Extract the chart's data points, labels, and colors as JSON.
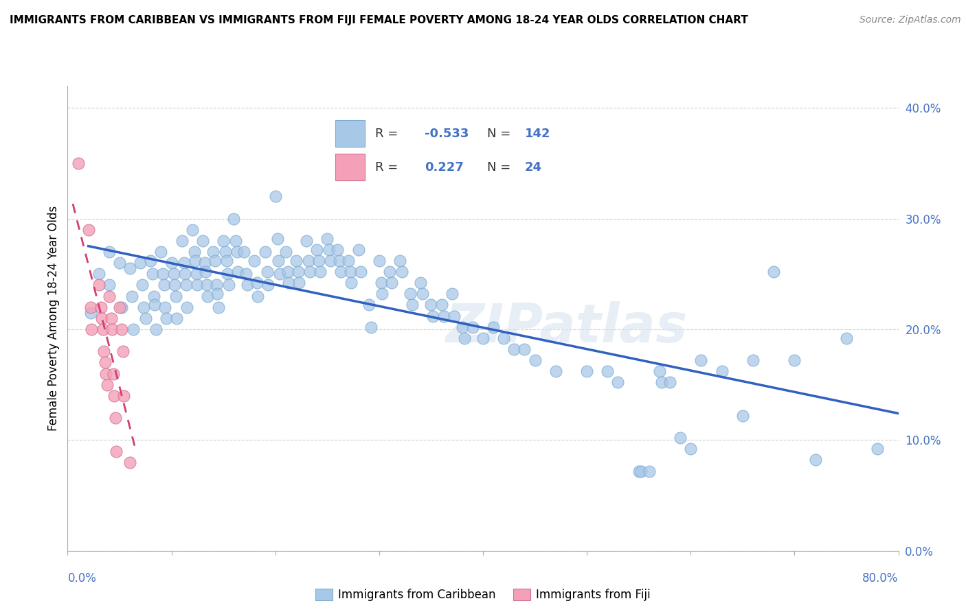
{
  "title": "IMMIGRANTS FROM CARIBBEAN VS IMMIGRANTS FROM FIJI FEMALE POVERTY AMONG 18-24 YEAR OLDS CORRELATION CHART",
  "source": "Source: ZipAtlas.com",
  "ylabel": "Female Poverty Among 18-24 Year Olds",
  "xlim": [
    0.0,
    0.8
  ],
  "ylim": [
    0.0,
    0.42
  ],
  "caribbean_color": "#a8c8e8",
  "fiji_color": "#f4a0b8",
  "caribbean_line_color": "#3060c0",
  "fiji_line_color": "#d04070",
  "legend_R_caribbean": "-0.533",
  "legend_N_caribbean": "142",
  "legend_R_fiji": "0.227",
  "legend_N_fiji": "24",
  "legend_text_color": "#4472c4",
  "watermark": "ZIPatlas",
  "background_color": "#ffffff",
  "grid_color": "#d0d0d0",
  "caribbean_scatter": [
    [
      0.022,
      0.215
    ],
    [
      0.03,
      0.25
    ],
    [
      0.04,
      0.27
    ],
    [
      0.04,
      0.24
    ],
    [
      0.05,
      0.26
    ],
    [
      0.052,
      0.22
    ],
    [
      0.06,
      0.255
    ],
    [
      0.062,
      0.23
    ],
    [
      0.063,
      0.2
    ],
    [
      0.07,
      0.26
    ],
    [
      0.072,
      0.24
    ],
    [
      0.073,
      0.22
    ],
    [
      0.075,
      0.21
    ],
    [
      0.08,
      0.262
    ],
    [
      0.082,
      0.25
    ],
    [
      0.083,
      0.23
    ],
    [
      0.084,
      0.222
    ],
    [
      0.085,
      0.2
    ],
    [
      0.09,
      0.27
    ],
    [
      0.092,
      0.25
    ],
    [
      0.093,
      0.24
    ],
    [
      0.094,
      0.22
    ],
    [
      0.095,
      0.21
    ],
    [
      0.1,
      0.26
    ],
    [
      0.102,
      0.25
    ],
    [
      0.103,
      0.24
    ],
    [
      0.104,
      0.23
    ],
    [
      0.105,
      0.21
    ],
    [
      0.11,
      0.28
    ],
    [
      0.112,
      0.26
    ],
    [
      0.113,
      0.25
    ],
    [
      0.114,
      0.24
    ],
    [
      0.115,
      0.22
    ],
    [
      0.12,
      0.29
    ],
    [
      0.122,
      0.27
    ],
    [
      0.123,
      0.262
    ],
    [
      0.124,
      0.25
    ],
    [
      0.125,
      0.24
    ],
    [
      0.13,
      0.28
    ],
    [
      0.132,
      0.26
    ],
    [
      0.133,
      0.252
    ],
    [
      0.134,
      0.24
    ],
    [
      0.135,
      0.23
    ],
    [
      0.14,
      0.27
    ],
    [
      0.142,
      0.262
    ],
    [
      0.143,
      0.24
    ],
    [
      0.144,
      0.232
    ],
    [
      0.145,
      0.22
    ],
    [
      0.15,
      0.28
    ],
    [
      0.152,
      0.27
    ],
    [
      0.153,
      0.262
    ],
    [
      0.154,
      0.25
    ],
    [
      0.155,
      0.24
    ],
    [
      0.16,
      0.3
    ],
    [
      0.162,
      0.28
    ],
    [
      0.163,
      0.27
    ],
    [
      0.164,
      0.252
    ],
    [
      0.17,
      0.27
    ],
    [
      0.172,
      0.25
    ],
    [
      0.173,
      0.24
    ],
    [
      0.18,
      0.262
    ],
    [
      0.182,
      0.242
    ],
    [
      0.183,
      0.23
    ],
    [
      0.19,
      0.27
    ],
    [
      0.192,
      0.252
    ],
    [
      0.193,
      0.24
    ],
    [
      0.2,
      0.32
    ],
    [
      0.202,
      0.282
    ],
    [
      0.203,
      0.262
    ],
    [
      0.204,
      0.25
    ],
    [
      0.21,
      0.27
    ],
    [
      0.212,
      0.252
    ],
    [
      0.213,
      0.242
    ],
    [
      0.22,
      0.262
    ],
    [
      0.222,
      0.252
    ],
    [
      0.223,
      0.242
    ],
    [
      0.23,
      0.28
    ],
    [
      0.232,
      0.262
    ],
    [
      0.233,
      0.252
    ],
    [
      0.24,
      0.272
    ],
    [
      0.242,
      0.262
    ],
    [
      0.243,
      0.252
    ],
    [
      0.25,
      0.282
    ],
    [
      0.252,
      0.272
    ],
    [
      0.253,
      0.262
    ],
    [
      0.26,
      0.272
    ],
    [
      0.262,
      0.262
    ],
    [
      0.263,
      0.252
    ],
    [
      0.27,
      0.262
    ],
    [
      0.272,
      0.252
    ],
    [
      0.273,
      0.242
    ],
    [
      0.28,
      0.272
    ],
    [
      0.282,
      0.252
    ],
    [
      0.29,
      0.222
    ],
    [
      0.292,
      0.202
    ],
    [
      0.3,
      0.262
    ],
    [
      0.302,
      0.242
    ],
    [
      0.303,
      0.232
    ],
    [
      0.31,
      0.252
    ],
    [
      0.312,
      0.242
    ],
    [
      0.32,
      0.262
    ],
    [
      0.322,
      0.252
    ],
    [
      0.33,
      0.232
    ],
    [
      0.332,
      0.222
    ],
    [
      0.34,
      0.242
    ],
    [
      0.342,
      0.232
    ],
    [
      0.35,
      0.222
    ],
    [
      0.352,
      0.212
    ],
    [
      0.36,
      0.222
    ],
    [
      0.362,
      0.212
    ],
    [
      0.37,
      0.232
    ],
    [
      0.372,
      0.212
    ],
    [
      0.38,
      0.202
    ],
    [
      0.382,
      0.192
    ],
    [
      0.39,
      0.202
    ],
    [
      0.4,
      0.192
    ],
    [
      0.41,
      0.202
    ],
    [
      0.42,
      0.192
    ],
    [
      0.43,
      0.182
    ],
    [
      0.44,
      0.182
    ],
    [
      0.45,
      0.172
    ],
    [
      0.47,
      0.162
    ],
    [
      0.5,
      0.162
    ],
    [
      0.52,
      0.162
    ],
    [
      0.53,
      0.152
    ],
    [
      0.55,
      0.072
    ],
    [
      0.552,
      0.072
    ],
    [
      0.56,
      0.072
    ],
    [
      0.57,
      0.162
    ],
    [
      0.572,
      0.152
    ],
    [
      0.58,
      0.152
    ],
    [
      0.59,
      0.102
    ],
    [
      0.6,
      0.092
    ],
    [
      0.61,
      0.172
    ],
    [
      0.63,
      0.162
    ],
    [
      0.65,
      0.122
    ],
    [
      0.66,
      0.172
    ],
    [
      0.68,
      0.252
    ],
    [
      0.7,
      0.172
    ],
    [
      0.72,
      0.082
    ],
    [
      0.75,
      0.192
    ],
    [
      0.78,
      0.092
    ]
  ],
  "fiji_scatter": [
    [
      0.01,
      0.35
    ],
    [
      0.02,
      0.29
    ],
    [
      0.022,
      0.22
    ],
    [
      0.023,
      0.2
    ],
    [
      0.03,
      0.24
    ],
    [
      0.032,
      0.22
    ],
    [
      0.033,
      0.21
    ],
    [
      0.034,
      0.2
    ],
    [
      0.035,
      0.18
    ],
    [
      0.036,
      0.17
    ],
    [
      0.037,
      0.16
    ],
    [
      0.038,
      0.15
    ],
    [
      0.04,
      0.23
    ],
    [
      0.042,
      0.21
    ],
    [
      0.043,
      0.2
    ],
    [
      0.044,
      0.16
    ],
    [
      0.045,
      0.14
    ],
    [
      0.046,
      0.12
    ],
    [
      0.047,
      0.09
    ],
    [
      0.05,
      0.22
    ],
    [
      0.052,
      0.2
    ],
    [
      0.053,
      0.18
    ],
    [
      0.054,
      0.14
    ],
    [
      0.06,
      0.08
    ]
  ]
}
